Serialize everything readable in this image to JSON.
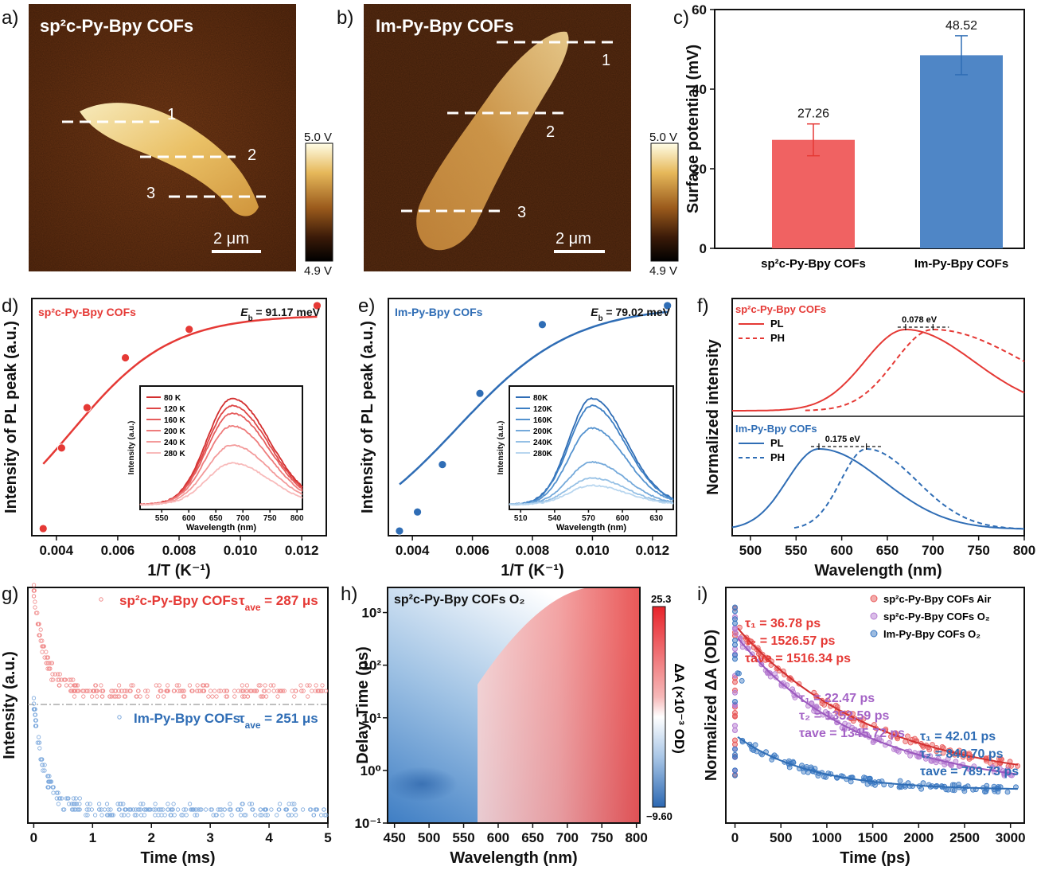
{
  "panels": {
    "a": {
      "label": "a)",
      "title": "sp²c-Py-Bpy COFs",
      "lines": [
        "1",
        "2",
        "3"
      ],
      "scale": "2 μm",
      "cbar": [
        "5.0 V",
        "4.9 V"
      ]
    },
    "b": {
      "label": "b)",
      "title": "Im-Py-Bpy COFs",
      "lines": [
        "1",
        "2",
        "3"
      ],
      "scale": "2 μm",
      "cbar": [
        "5.0 V",
        "4.9 V"
      ]
    },
    "c": {
      "label": "c)"
    },
    "d": {
      "label": "d)"
    },
    "e": {
      "label": "e)"
    },
    "f": {
      "label": "f)"
    },
    "g": {
      "label": "g)"
    },
    "h": {
      "label": "h)"
    },
    "i": {
      "label": "i)"
    }
  },
  "colors": {
    "red": "#e53935",
    "blue": "#2f6db5",
    "bar_red": "#f06262",
    "bar_blue": "#4f86c6"
  },
  "chart_data": [
    {
      "id": "c",
      "type": "bar",
      "categories": [
        "sp²c-Py-Bpy COFs",
        "Im-Py-Bpy COFs"
      ],
      "values": [
        27.26,
        48.52
      ],
      "errors": [
        4.0,
        4.9
      ],
      "value_labels": [
        "27.26",
        "48.52"
      ],
      "ylabel": "Surface potential (mV)",
      "ylim": [
        0,
        60
      ],
      "yticks": [
        "0",
        "20",
        "40",
        "60"
      ]
    },
    {
      "id": "d",
      "type": "scatter",
      "xlabel": "1/T (K⁻¹)",
      "ylabel": "Intensity of PL peak (a.u.)",
      "xlim": [
        0.0032,
        0.0128
      ],
      "xticks": [
        "0.004",
        "0.006",
        "0.008",
        "0.010",
        "0.012"
      ],
      "series_name": "sp²c-Py-Bpy COFs",
      "annotation": "E_b = 91.17 meV",
      "annotation_label": "E",
      "annotation_sub": "b",
      "annotation_value": " = 91.17 meV",
      "x": [
        0.00357,
        0.00417,
        0.005,
        0.00625,
        0.00833,
        0.0125
      ],
      "y": [
        0.03,
        0.37,
        0.54,
        0.75,
        0.87,
        0.97
      ],
      "inset": {
        "xlabel": "Wavelength (nm)",
        "ylabel": "Intensity (a.u.)",
        "xticks": [
          "550",
          "600",
          "650",
          "700",
          "750",
          "800"
        ],
        "xlim": [
          510,
          810
        ],
        "legend": [
          "80 K",
          "120 K",
          "160 K",
          "200 K",
          "240 K",
          "280 K"
        ],
        "peaks": [
          1.0,
          0.93,
          0.86,
          0.74,
          0.56,
          0.39
        ],
        "colors": [
          "#d32f2f",
          "#de4646",
          "#e65e5e",
          "#ee7c7c",
          "#f39a9a",
          "#f8baba"
        ]
      }
    },
    {
      "id": "e",
      "type": "scatter",
      "xlabel": "1/T (K⁻¹)",
      "ylabel": "Intensity of PL peak (a.u.)",
      "xlim": [
        0.0032,
        0.0128
      ],
      "xticks": [
        "0.004",
        "0.006",
        "0.008",
        "0.010",
        "0.012"
      ],
      "series_name": "Im-Py-Bpy COFs",
      "annotation": "E_b = 79.02 meV",
      "annotation_label": "E",
      "annotation_sub": "b",
      "annotation_value": " = 79.02 meV",
      "x": [
        0.00357,
        0.00417,
        0.005,
        0.00625,
        0.00833,
        0.0125
      ],
      "y": [
        0.02,
        0.1,
        0.3,
        0.6,
        0.89,
        0.97
      ],
      "inset": {
        "xlabel": "Wavelength (nm)",
        "ylabel": "Intensity (a.u.)",
        "xticks": [
          "510",
          "540",
          "570",
          "600",
          "630"
        ],
        "xlim": [
          500,
          645
        ],
        "legend": [
          "80K",
          "120K",
          "160K",
          "200K",
          "240K",
          "280K"
        ],
        "peaks": [
          1.0,
          0.93,
          0.72,
          0.4,
          0.25,
          0.18
        ],
        "colors": [
          "#2f6db5",
          "#3d7fc4",
          "#5593cf",
          "#74a9da",
          "#95c0e5",
          "#b8d6ef"
        ]
      }
    },
    {
      "id": "f",
      "type": "line",
      "xlabel": "Wavelength (nm)",
      "ylabel": "Normalized intensity",
      "xlim": [
        480,
        800
      ],
      "xticks": [
        "500",
        "550",
        "600",
        "650",
        "700",
        "750",
        "800"
      ],
      "top": {
        "title": "sp²c-Py-Bpy COFs",
        "legend": [
          "PL",
          "PH"
        ],
        "gap": "0.078 eV",
        "pl_peak": 670,
        "ph_peak": 700
      },
      "bottom": {
        "title": "Im-Py-Bpy COFs",
        "legend": [
          "PL",
          "PH"
        ],
        "gap": "0.175 eV",
        "pl_peak": 575,
        "ph_peak": 627
      }
    },
    {
      "id": "g",
      "type": "scatter",
      "xlabel": "Time (ms)",
      "ylabel": "Intensity (a.u.)",
      "xlim": [
        -0.1,
        5.0
      ],
      "xticks": [
        "0",
        "1",
        "2",
        "3",
        "4",
        "5"
      ],
      "top": {
        "name": "sp²c-Py-Bpy COFs",
        "tau_label": "τ",
        "tau_sub": "ave",
        "tau_value": " = 287 μs"
      },
      "bottom": {
        "name": "Im-Py-Bpy COFs",
        "tau_label": "τ",
        "tau_sub": "ave",
        "tau_value": " = 251 μs"
      }
    },
    {
      "id": "h",
      "type": "heatmap",
      "title": "sp²c-Py-Bpy COFs O₂",
      "xlabel": "Wavelength (nm)",
      "ylabel": "Delay Time (ps)",
      "xlim": [
        440,
        805
      ],
      "xticks": [
        "450",
        "500",
        "550",
        "600",
        "650",
        "700",
        "750",
        "800"
      ],
      "yscale": "log",
      "ylim": [
        0.1,
        3000
      ],
      "yticks": [
        "10⁻¹",
        "10⁰",
        "10¹",
        "10²",
        "10³"
      ],
      "colorbar": {
        "label": "ΔA (×10⁻³ OD)",
        "max": "25.3",
        "min": "−9.60"
      }
    },
    {
      "id": "i",
      "type": "scatter",
      "xlabel": "Time (ps)",
      "ylabel": "Normalized ΔA (OD)",
      "xlim": [
        -100,
        3150
      ],
      "xticks": [
        "0",
        "500",
        "1000",
        "1500",
        "2000",
        "2500",
        "3000"
      ],
      "series": [
        {
          "name": "sp²c-Py-Bpy COFs Air",
          "color": "#e85a5a",
          "fit": [
            "τ₁ = 36.78 ps",
            "τ₂ = 1526.57 ps",
            "τave = 1516.34 ps"
          ]
        },
        {
          "name": "sp²c-Py-Bpy COFs O₂",
          "color": "#b57bd1",
          "fit": [
            "τ₁ = 22.47 ps",
            "τ₂ = 1352.59 ps",
            "τave = 1345.72 ps"
          ]
        },
        {
          "name": "Im-Py-Bpy COFs O₂",
          "color": "#3a78c2",
          "fit": [
            "τ₁ = 42.01 ps",
            "τ₂ = 840.70 ps",
            "τave = 789.73 ps"
          ]
        }
      ]
    }
  ]
}
